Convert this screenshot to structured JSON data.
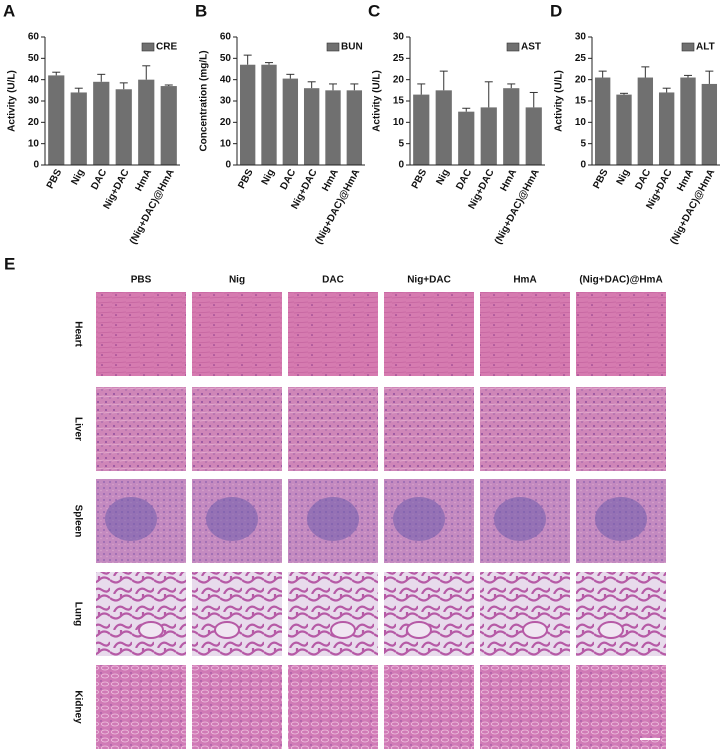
{
  "chart_data": [
    {
      "type": "bar",
      "panel": "A",
      "y_label": "Activity (U/L)",
      "categories": [
        "PBS",
        "Nig",
        "DAC",
        "Nig+DAC",
        "HmA",
        "(Nig+DAC)@HmA"
      ],
      "series": [
        {
          "name": "CRE",
          "color": "#707070",
          "values": [
            42,
            34,
            39,
            35.5,
            40,
            37
          ],
          "errors": [
            1.5,
            2,
            3.5,
            3,
            6.5,
            0.5
          ]
        }
      ],
      "ylim": [
        0,
        60
      ],
      "yticks": [
        0,
        10,
        20,
        30,
        40,
        50,
        60
      ]
    },
    {
      "type": "bar",
      "panel": "B",
      "y_label": "Concentration (mg/L)",
      "categories": [
        "PBS",
        "Nig",
        "DAC",
        "Nig+DAC",
        "HmA",
        "(Nig+DAC)@HmA"
      ],
      "series": [
        {
          "name": "BUN",
          "color": "#707070",
          "values": [
            47,
            47,
            40.5,
            36,
            35,
            35
          ],
          "errors": [
            4.5,
            1,
            2,
            3,
            3,
            3
          ]
        }
      ],
      "ylim": [
        0,
        60
      ],
      "yticks": [
        0,
        10,
        20,
        30,
        40,
        50,
        60
      ]
    },
    {
      "type": "bar",
      "panel": "C",
      "y_label": "Activity (U/L)",
      "categories": [
        "PBS",
        "Nig",
        "DAC",
        "Nig+DAC",
        "HmA",
        "(Nig+DAC)@HmA"
      ],
      "series": [
        {
          "name": "AST",
          "color": "#707070",
          "values": [
            16.5,
            17.5,
            12.5,
            13.5,
            18,
            13.5
          ],
          "errors": [
            2.5,
            4.5,
            0.8,
            6,
            1,
            3.5
          ]
        }
      ],
      "ylim": [
        0,
        30
      ],
      "yticks": [
        0,
        5,
        10,
        15,
        20,
        25,
        30
      ]
    },
    {
      "type": "bar",
      "panel": "D",
      "y_label": "Activity (U/L)",
      "categories": [
        "PBS",
        "Nig",
        "DAC",
        "Nig+DAC",
        "HmA",
        "(Nig+DAC)@HmA"
      ],
      "series": [
        {
          "name": "ALT",
          "color": "#707070",
          "values": [
            20.5,
            16.5,
            20.5,
            17,
            20.5,
            19
          ],
          "errors": [
            1.5,
            0.3,
            2.5,
            1,
            0.5,
            3
          ]
        }
      ],
      "ylim": [
        0,
        30
      ],
      "yticks": [
        0,
        5,
        10,
        15,
        20,
        25,
        30
      ]
    }
  ],
  "histology": {
    "panel": "E",
    "columns": [
      "PBS",
      "Nig",
      "DAC",
      "Nig+DAC",
      "HmA",
      "(Nig+DAC)@HmA"
    ],
    "rows": [
      "Heart",
      "Liver",
      "Spleen",
      "Lung",
      "Kidney"
    ]
  }
}
